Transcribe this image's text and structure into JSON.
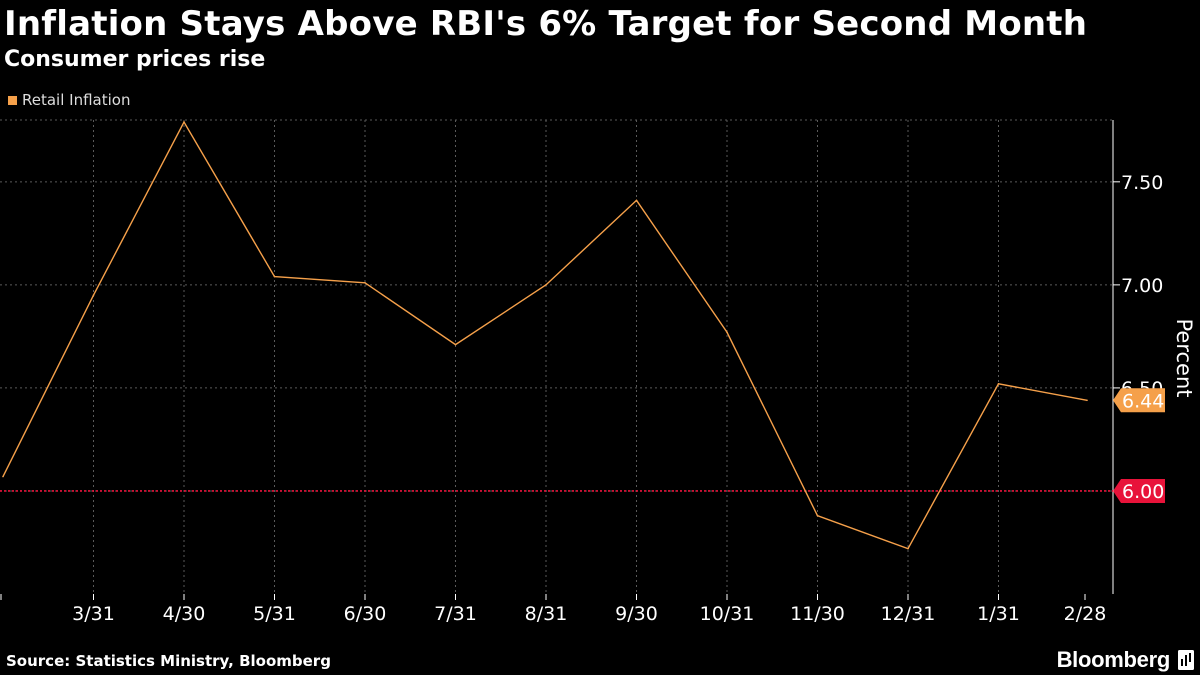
{
  "header": {
    "title": "Inflation Stays Above RBI's 6% Target for Second Month",
    "subtitle": "Consumer prices rise"
  },
  "footer": {
    "source": "Source: Statistics Ministry, Bloomberg",
    "brand": "Bloomberg",
    "brand_icon": "bloomberg-terminal-icon"
  },
  "colors": {
    "background": "#000000",
    "series": "#f5a04a",
    "target": "#e8133a",
    "grid": "#5a5a5a"
  },
  "chart_data": {
    "type": "line",
    "legend": {
      "position": "top-left",
      "entries": [
        "Retail Inflation"
      ]
    },
    "ylabel": "Percent",
    "y_axis_side": "right",
    "ylim": [
      5.5,
      7.8
    ],
    "yticks": [
      6.0,
      6.5,
      7.0,
      7.5
    ],
    "ytick_labels": [
      "6.00",
      "6.50",
      "7.00",
      "7.50"
    ],
    "grid": true,
    "x_tick_labels": [
      "3/31",
      "4/30",
      "5/31",
      "6/30",
      "7/31",
      "8/31",
      "9/30",
      "10/31",
      "11/30",
      "12/31",
      "1/31",
      "2/28"
    ],
    "series": [
      {
        "name": "Retail Inflation",
        "x": [
          "2/28",
          "3/31",
          "4/30",
          "5/31",
          "6/30",
          "7/31",
          "8/31",
          "9/30",
          "10/31",
          "11/30",
          "12/31",
          "1/31",
          "2/28"
        ],
        "values": [
          6.07,
          6.95,
          7.79,
          7.04,
          7.01,
          6.71,
          7.0,
          7.41,
          6.77,
          5.88,
          5.72,
          6.52,
          6.44
        ]
      }
    ],
    "reference_lines": [
      {
        "value": 6.0,
        "label": "6.00",
        "style": "dotted"
      }
    ],
    "last_value_label": "6.44"
  }
}
